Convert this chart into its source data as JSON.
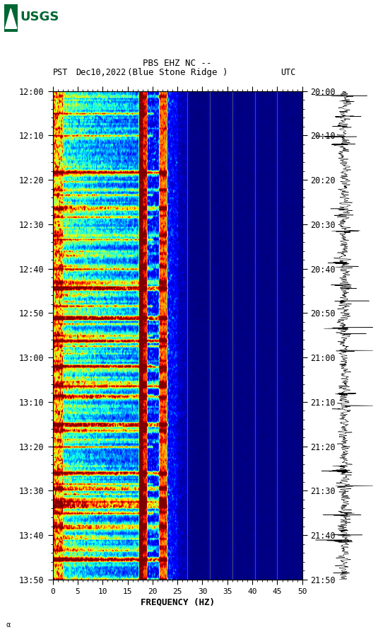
{
  "title_line1": "PBS EHZ NC --",
  "title_line2": "(Blue Stone Ridge )",
  "date_label": "Dec10,2022",
  "left_label": "PST",
  "right_label": "UTC",
  "left_times": [
    "12:00",
    "12:10",
    "12:20",
    "12:30",
    "12:40",
    "12:50",
    "13:00",
    "13:10",
    "13:20",
    "13:30",
    "13:40",
    "13:50"
  ],
  "right_times": [
    "20:00",
    "20:10",
    "20:20",
    "20:30",
    "20:40",
    "20:50",
    "21:00",
    "21:10",
    "21:20",
    "21:30",
    "21:40",
    "21:50"
  ],
  "freq_min": 0,
  "freq_max": 50,
  "freq_ticks": [
    0,
    5,
    10,
    15,
    20,
    25,
    30,
    35,
    40,
    45,
    50
  ],
  "xlabel": "FREQUENCY (HZ)",
  "time_minutes": 110,
  "vertical_lines_dark": [
    18.0,
    22.0
  ],
  "vertical_lines_faint": [
    27.0,
    31.5,
    36.0,
    40.5,
    45.0
  ],
  "background_color": "#ffffff",
  "usgs_green": "#006633",
  "spec_figsize": [
    5.52,
    8.93
  ],
  "spec_dpi": 100
}
